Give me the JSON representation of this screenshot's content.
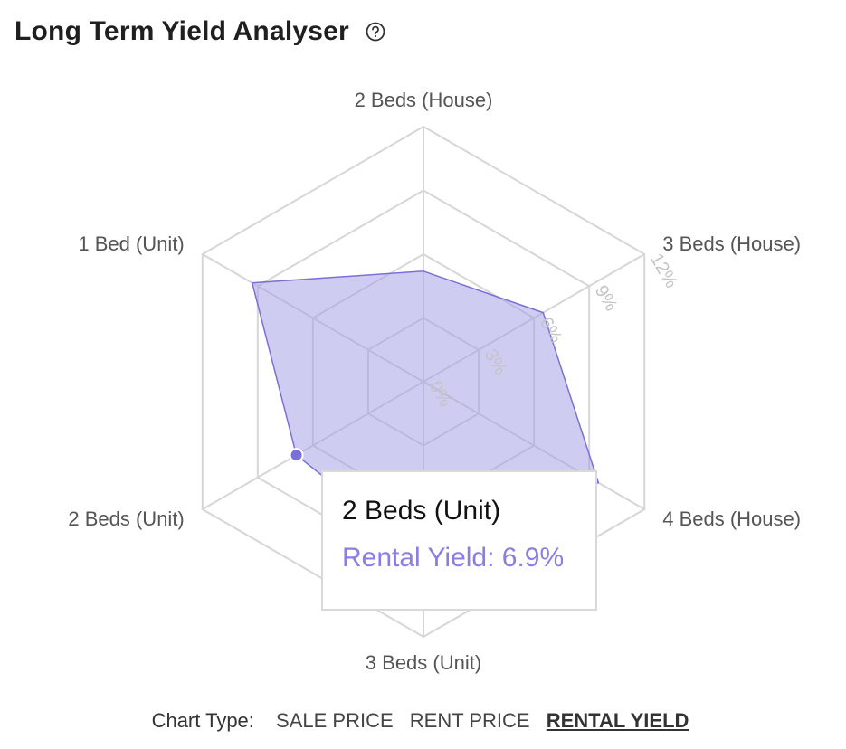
{
  "page": {
    "title": "Long Term Yield Analyser",
    "help_icon": "help-circle-icon"
  },
  "chart_data": {
    "type": "radar",
    "categories": [
      "2 Beds (House)",
      "3 Beds (House)",
      "4 Beds (House)",
      "3 Beds (Unit)",
      "2 Beds (Unit)",
      "1 Bed (Unit)"
    ],
    "series": [
      {
        "name": "Rental Yield",
        "values": [
          5.2,
          6.5,
          9.5,
          8.2,
          6.9,
          9.3
        ]
      }
    ],
    "r_ticks": [
      "0%",
      "3%",
      "6%",
      "9%",
      "12%"
    ],
    "r_range": [
      0,
      12
    ],
    "fill_color": "#a8a2e6",
    "stroke_color": "#7b70d9",
    "grid_color": "#d6d6d6"
  },
  "tooltip": {
    "category": "2 Beds (Unit)",
    "series_label": "Rental Yield: 6.9%"
  },
  "chart_type": {
    "label": "Chart Type:",
    "options": [
      "SALE PRICE",
      "RENT PRICE",
      "RENTAL YIELD"
    ],
    "active": "RENTAL YIELD"
  }
}
